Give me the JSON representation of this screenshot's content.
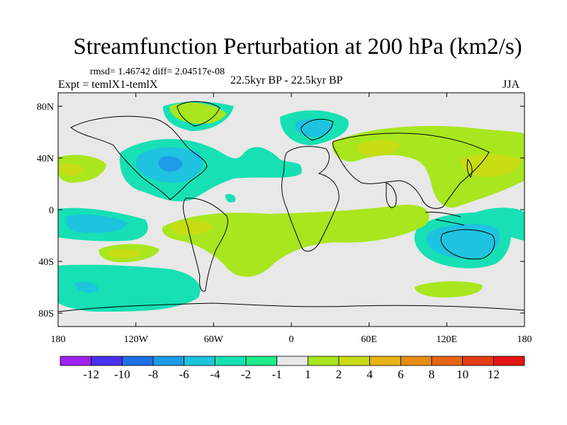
{
  "title": "Streamfunction Perturbation at 200 hPa (km2/s)",
  "stats": "rmsd= 1.46742 diff= 2.04517e-08",
  "expt": "Expt = temlX1-temlX",
  "center_label": "22.5kyr BP - 22.5kyr BP",
  "season": "JJA",
  "lat_ticks": [
    "80N",
    "40N",
    "0",
    "40S",
    "80S"
  ],
  "lon_ticks": [
    "180",
    "120W",
    "60W",
    "0",
    "60E",
    "120E",
    "180"
  ],
  "colorbar": {
    "labels": [
      "-12",
      "-10",
      "-8",
      "-6",
      "-4",
      "-2",
      "-1",
      "1",
      "2",
      "4",
      "6",
      "8",
      "10",
      "12"
    ],
    "colors": [
      "#a020f0",
      "#4b2ff0",
      "#1e6fe6",
      "#1e9be6",
      "#1ec3e0",
      "#16e0b4",
      "#1eeb8c",
      "#e8e8e8",
      "#a8e61e",
      "#c8dc14",
      "#e6b414",
      "#e68c14",
      "#e66414",
      "#e63c14",
      "#e61414"
    ]
  },
  "colors": {
    "neutral": "#e8e8e8",
    "cyan": "#1ec3e0",
    "teal": "#16e0b4",
    "blue": "#1e9be6",
    "green": "#a8e61e",
    "olive": "#c8dc14",
    "orange": "#e6b414",
    "coast": "#000000"
  }
}
